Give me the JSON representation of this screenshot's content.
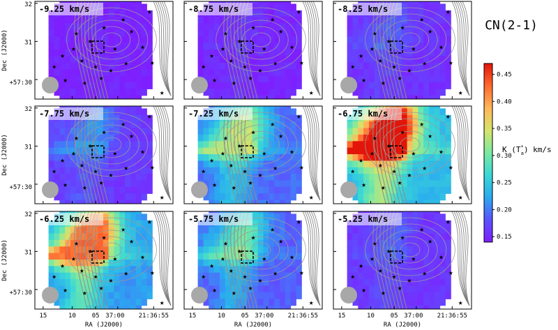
{
  "chart_data": {
    "type": "heatmap",
    "molecule": "CN(2-1)",
    "colorbar": {
      "label": "K (T",
      "label_sub": "a",
      "label_sup": "*",
      "label_tail": ") km/s",
      "ticks": [
        "0.45",
        "0.40",
        "0.35",
        "0.30",
        "0.25",
        "0.20",
        "0.15"
      ],
      "range": [
        0.14,
        0.47
      ],
      "colormap": [
        "#7e1fff",
        "#5b53ff",
        "#2aa9f0",
        "#39d7d7",
        "#7be9a2",
        "#d6e36b",
        "#ffb75a",
        "#ff6a30",
        "#e3150a"
      ]
    },
    "axes": {
      "xlabel": "RA (J2000)",
      "ylabel": "Dec (J2000)",
      "xticks": [
        "15",
        "10",
        "05",
        "37:00",
        "21:36:55"
      ],
      "yticks": [
        "32",
        "31",
        "+57:30"
      ]
    },
    "panels": [
      {
        "velocity": "-9.25 km/s",
        "intensity": 0.15
      },
      {
        "velocity": "-8.75 km/s",
        "intensity": 0.16
      },
      {
        "velocity": "-8.25 km/s",
        "intensity": 0.18
      },
      {
        "velocity": "-7.75 km/s",
        "intensity": 0.2
      },
      {
        "velocity": "-7.25 km/s",
        "intensity": 0.29
      },
      {
        "velocity": "-6.75 km/s",
        "intensity": 0.42
      },
      {
        "velocity": "-6.25 km/s",
        "intensity": 0.36
      },
      {
        "velocity": "-5.75 km/s",
        "intensity": 0.27
      },
      {
        "velocity": "-5.25 km/s",
        "intensity": 0.19
      }
    ],
    "overlays": [
      "grey-contours",
      "star-markers",
      "dashed-box",
      "beam-circle"
    ]
  }
}
